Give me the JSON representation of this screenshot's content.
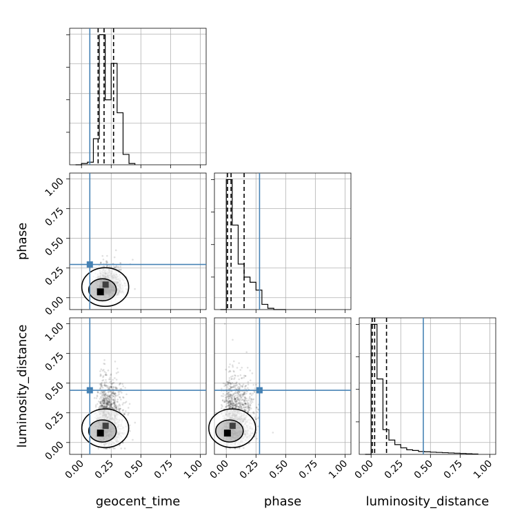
{
  "chart_data": {
    "type": "corner",
    "parameters": [
      "geocent_time",
      "phase",
      "luminosity_distance"
    ],
    "axis_range": [
      -0.1,
      1.05
    ],
    "ticks": [
      0.0,
      0.25,
      0.5,
      0.75,
      1.0
    ],
    "tick_labels": [
      "0.00",
      "0.25",
      "0.50",
      "0.75",
      "1.00"
    ],
    "truth_color": "#4682b4",
    "hist_color": "#000000",
    "truths": {
      "geocent_time": 0.07,
      "phase": 0.28,
      "luminosity_distance": 0.44
    },
    "quantiles": {
      "geocent_time": [
        0.14,
        0.19,
        0.27
      ],
      "phase": [
        0.01,
        0.04,
        0.15
      ],
      "luminosity_distance": [
        0.01,
        0.03,
        0.13
      ]
    },
    "histograms": {
      "geocent_time": {
        "bin_edges": [
          -0.05,
          0.0,
          0.05,
          0.1,
          0.15,
          0.2,
          0.25,
          0.3,
          0.35,
          0.4,
          0.45
        ],
        "counts": [
          0.0,
          0.01,
          0.02,
          0.2,
          1.0,
          0.5,
          0.78,
          0.4,
          0.08,
          0.01
        ]
      },
      "phase": {
        "bin_edges": [
          -0.05,
          0.0,
          0.05,
          0.1,
          0.15,
          0.2,
          0.25,
          0.3,
          0.35,
          0.4,
          0.45,
          0.5
        ],
        "counts": [
          0.0,
          1.0,
          0.65,
          0.35,
          0.25,
          0.21,
          0.15,
          0.04,
          0.01,
          0.0,
          0.0
        ]
      },
      "luminosity_distance": {
        "bin_edges": [
          -0.05,
          0.0,
          0.05,
          0.1,
          0.15,
          0.2,
          0.25,
          0.3,
          0.35,
          0.4,
          0.45,
          0.5,
          0.55,
          0.6,
          0.65,
          0.7,
          0.75,
          0.8,
          0.85,
          0.9
        ],
        "counts": [
          0.0,
          1.0,
          0.58,
          0.19,
          0.11,
          0.075,
          0.05,
          0.035,
          0.03,
          0.022,
          0.02,
          0.017,
          0.015,
          0.013,
          0.011,
          0.009,
          0.007,
          0.005,
          0.003
        ]
      }
    },
    "grid": true
  }
}
